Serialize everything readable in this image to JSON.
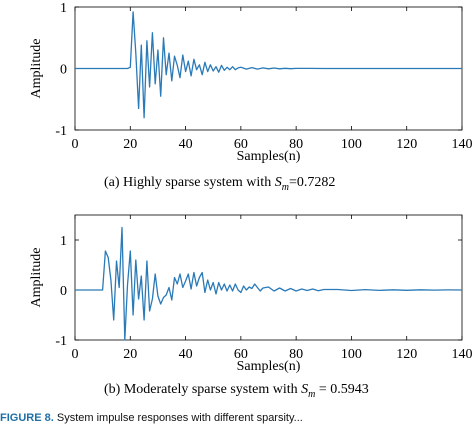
{
  "chart_data": [
    {
      "type": "line",
      "ylabel": "Amplitude",
      "xlabel": "Samples(n)",
      "xlim": [
        0,
        140
      ],
      "ylim": [
        -1,
        1
      ],
      "xticks": [
        0,
        20,
        40,
        60,
        80,
        100,
        120,
        140
      ],
      "yticks": [
        1,
        0,
        -1
      ],
      "color": "#2a7ab8",
      "grid": false,
      "caption": {
        "prefix": "(a)  Highly sparse system with ",
        "sym": "S",
        "sub": "m",
        "suffix": "=0.7282"
      },
      "series": [
        {
          "x": [
            0,
            19,
            20,
            21,
            22,
            23,
            24,
            25,
            26,
            27,
            28,
            29,
            30,
            31,
            32,
            33,
            34,
            35,
            36,
            37,
            38,
            39,
            40,
            41,
            42,
            43,
            44,
            45,
            46,
            47,
            48,
            49,
            50,
            51,
            52,
            53,
            54,
            55,
            56,
            57,
            58,
            59,
            60,
            62,
            64,
            66,
            68,
            70,
            72,
            74,
            76,
            78,
            80,
            85,
            90,
            100,
            110,
            120,
            140
          ],
          "y": [
            0,
            0,
            0.02,
            0.92,
            0.25,
            -0.65,
            0.38,
            -0.8,
            0.45,
            -0.3,
            0.58,
            -0.25,
            0.3,
            -0.45,
            0.5,
            -0.1,
            0.25,
            -0.2,
            0.2,
            0.05,
            -0.15,
            0.22,
            -0.05,
            0.12,
            -0.12,
            0.15,
            -0.02,
            0.06,
            -0.1,
            0.1,
            -0.05,
            0.06,
            -0.04,
            0.03,
            -0.06,
            0.05,
            -0.03,
            0.02,
            -0.02,
            0.03,
            -0.02,
            0.01,
            0.02,
            -0.01,
            0.015,
            -0.01,
            0.01,
            -0.005,
            0.008,
            -0.005,
            0.004,
            -0.003,
            0.002,
            0.001,
            0,
            0,
            0,
            0,
            0
          ]
        }
      ]
    },
    {
      "type": "line",
      "ylabel": "Amplitude",
      "xlabel": "Samples(n)",
      "xlim": [
        0,
        140
      ],
      "ylim": [
        -1,
        1.5
      ],
      "xticks": [
        0,
        20,
        40,
        60,
        80,
        100,
        120,
        140
      ],
      "yticks": [
        1,
        0,
        -1
      ],
      "color": "#2a7ab8",
      "grid": false,
      "caption": {
        "prefix": "(b)  Moderately sparse system with ",
        "sym": "S",
        "sub": "m",
        "suffix": " = 0.5943"
      },
      "series": [
        {
          "x": [
            0,
            10,
            11,
            12,
            13,
            14,
            15,
            16,
            17,
            18,
            19,
            20,
            21,
            22,
            23,
            24,
            25,
            26,
            27,
            28,
            29,
            30,
            31,
            32,
            33,
            34,
            35,
            36,
            37,
            38,
            39,
            40,
            41,
            42,
            43,
            44,
            45,
            46,
            47,
            48,
            49,
            50,
            51,
            52,
            53,
            54,
            55,
            56,
            57,
            58,
            59,
            60,
            61,
            62,
            63,
            64,
            65,
            66,
            67,
            68,
            70,
            72,
            74,
            76,
            78,
            80,
            82,
            84,
            86,
            88,
            90,
            95,
            100,
            105,
            110,
            115,
            120,
            125,
            130,
            135,
            140
          ],
          "y": [
            0,
            0,
            0.78,
            0.65,
            0.2,
            -0.6,
            0.58,
            0.05,
            1.25,
            -1.0,
            0.1,
            0.78,
            -0.5,
            0.6,
            -0.18,
            0.28,
            -0.6,
            0.58,
            -0.42,
            -0.18,
            0.32,
            -0.12,
            -0.28,
            -0.15,
            -0.1,
            0.05,
            -0.2,
            0.25,
            0.12,
            0.32,
            0.05,
            0.18,
            0.32,
            0.02,
            0.35,
            0.08,
            0.25,
            0.35,
            -0.05,
            0.2,
            0.0,
            0.15,
            -0.08,
            0.15,
            0.0,
            0.12,
            -0.02,
            0.1,
            -0.02,
            0.12,
            0.0,
            -0.05,
            0.08,
            0.0,
            0.06,
            0.03,
            0.12,
            0.05,
            -0.02,
            0.04,
            0.06,
            -0.02,
            0.04,
            -0.02,
            0.03,
            -0.02,
            0.02,
            -0.01,
            0.02,
            -0.015,
            0.01,
            0.01,
            -0.01,
            0.008,
            -0.008,
            0.005,
            -0.005,
            0.004,
            -0.003,
            0.002,
            0
          ]
        }
      ]
    }
  ],
  "figure_caption": {
    "fig": "FIGURE 8.",
    "text": "  System impulse responses with different sparsity..."
  }
}
